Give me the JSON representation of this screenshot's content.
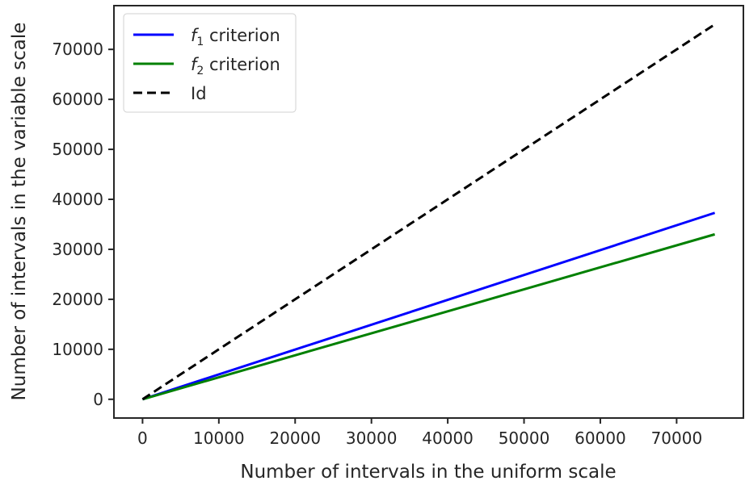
{
  "chart_data": {
    "type": "line",
    "title": "",
    "xlabel": "Number of intervals in the uniform scale",
    "ylabel": "Number of intervals in the variable scale",
    "xlim": [
      -3750,
      78750
    ],
    "ylim": [
      -3750,
      78750
    ],
    "xticks": [
      0,
      10000,
      20000,
      30000,
      40000,
      50000,
      60000,
      70000
    ],
    "yticks": [
      0,
      10000,
      20000,
      30000,
      40000,
      50000,
      60000,
      70000
    ],
    "grid": false,
    "legend_position": "top-left",
    "series": [
      {
        "name": "f1 criterion",
        "name_main": "f",
        "name_sub": "1",
        "name_rest": " criterion",
        "color": "#0000ff",
        "dash": "solid",
        "x": [
          0,
          75000
        ],
        "y": [
          0,
          37300
        ]
      },
      {
        "name": "f2 criterion",
        "name_main": "f",
        "name_sub": "2",
        "name_rest": " criterion",
        "color": "#008000",
        "dash": "solid",
        "x": [
          0,
          75000
        ],
        "y": [
          0,
          33000
        ]
      },
      {
        "name": "Id",
        "name_main": "Id",
        "name_sub": "",
        "name_rest": "",
        "color": "#000000",
        "dash": "dashed",
        "x": [
          0,
          75000
        ],
        "y": [
          0,
          75000
        ]
      }
    ]
  }
}
